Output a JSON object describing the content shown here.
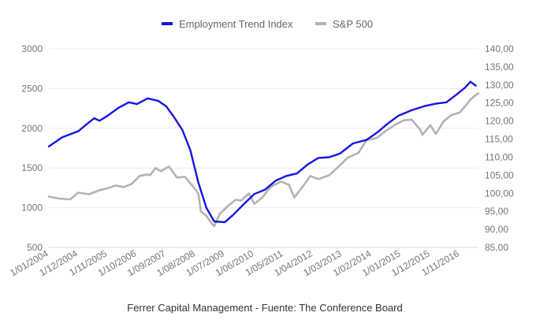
{
  "chart_data": {
    "type": "line",
    "title": "",
    "source": "Ferrer Capital Management - Fuente: The Conference Board",
    "legend": {
      "placement": "top-center"
    },
    "grid": {
      "horizontal": true,
      "vertical": false
    },
    "x_axis": {
      "range": [
        "2004-01-01",
        "2017-06-01"
      ],
      "tick_labels": [
        "1/01/2004",
        "1/12/2004",
        "1/11/2005",
        "1/10/2006",
        "1/09/2007",
        "1/08/2008",
        "1/07/2009",
        "1/06/2010",
        "1/05/2011",
        "1/04/2012",
        "1/03/2013",
        "1/02/2014",
        "1/01/2015",
        "1/12/2015",
        "1/11/2016"
      ],
      "tick_dates": [
        "2004-01-01",
        "2004-12-01",
        "2005-11-01",
        "2006-10-01",
        "2007-09-01",
        "2008-08-01",
        "2009-07-01",
        "2010-06-01",
        "2011-05-01",
        "2012-04-01",
        "2013-03-01",
        "2014-02-01",
        "2015-01-01",
        "2015-12-01",
        "2016-11-01"
      ]
    },
    "y_axis_left": {
      "range": [
        500,
        3000
      ],
      "tick_labels": [
        "3000",
        "2500",
        "2000",
        "1500",
        "1000",
        "500"
      ],
      "tick_values": [
        3000,
        2500,
        2000,
        1500,
        1000,
        500
      ]
    },
    "y_axis_right": {
      "range": [
        85,
        140
      ],
      "tick_labels": [
        "140,00",
        "135,00",
        "130,00",
        "125,00",
        "120,00",
        "115,00",
        "110,00",
        "105,00",
        "100,00",
        "95,00",
        "90,00",
        "85,00"
      ],
      "tick_values": [
        140,
        135,
        130,
        125,
        120,
        115,
        110,
        105,
        100,
        95,
        90,
        85
      ]
    },
    "series": [
      {
        "name": "Employment Trend Index",
        "axis": "right",
        "color": "#1414e6",
        "points": [
          [
            "2004-01-01",
            113.0
          ],
          [
            "2004-06-01",
            115.5
          ],
          [
            "2004-12-01",
            117.2
          ],
          [
            "2005-03-01",
            119.0
          ],
          [
            "2005-06-01",
            120.8
          ],
          [
            "2005-08-01",
            120.1
          ],
          [
            "2005-11-01",
            121.5
          ],
          [
            "2006-03-01",
            123.6
          ],
          [
            "2006-07-01",
            125.2
          ],
          [
            "2006-10-01",
            124.7
          ],
          [
            "2007-02-01",
            126.3
          ],
          [
            "2007-06-01",
            125.6
          ],
          [
            "2007-09-01",
            124.1
          ],
          [
            "2007-12-01",
            121.0
          ],
          [
            "2008-03-01",
            117.6
          ],
          [
            "2008-06-01",
            112.0
          ],
          [
            "2008-09-01",
            103.0
          ],
          [
            "2008-12-01",
            96.0
          ],
          [
            "2009-03-01",
            92.2
          ],
          [
            "2009-07-01",
            92.0
          ],
          [
            "2009-10-01",
            94.0
          ],
          [
            "2010-02-01",
            97.0
          ],
          [
            "2010-06-01",
            99.8
          ],
          [
            "2010-10-01",
            101.0
          ],
          [
            "2011-02-01",
            103.5
          ],
          [
            "2011-06-01",
            104.8
          ],
          [
            "2011-10-01",
            105.5
          ],
          [
            "2012-02-01",
            108.0
          ],
          [
            "2012-06-01",
            109.8
          ],
          [
            "2012-10-01",
            110.0
          ],
          [
            "2013-02-01",
            111.0
          ],
          [
            "2013-07-01",
            113.8
          ],
          [
            "2013-12-01",
            114.8
          ],
          [
            "2014-04-01",
            116.8
          ],
          [
            "2014-08-01",
            119.3
          ],
          [
            "2014-12-01",
            121.5
          ],
          [
            "2015-05-01",
            123.0
          ],
          [
            "2015-10-01",
            124.2
          ],
          [
            "2016-02-01",
            124.8
          ],
          [
            "2016-06-01",
            125.2
          ],
          [
            "2016-10-01",
            127.5
          ],
          [
            "2017-01-01",
            129.3
          ],
          [
            "2017-03-01",
            130.9
          ],
          [
            "2017-05-01",
            129.8
          ]
        ]
      },
      {
        "name": "S&P 500",
        "axis": "left",
        "color": "#b3b3b3",
        "points": [
          [
            "2004-01-01",
            1140
          ],
          [
            "2004-05-01",
            1115
          ],
          [
            "2004-09-01",
            1105
          ],
          [
            "2004-12-01",
            1190
          ],
          [
            "2005-04-01",
            1170
          ],
          [
            "2005-08-01",
            1220
          ],
          [
            "2005-11-01",
            1245
          ],
          [
            "2006-02-01",
            1280
          ],
          [
            "2006-05-01",
            1260
          ],
          [
            "2006-08-01",
            1300
          ],
          [
            "2006-11-01",
            1400
          ],
          [
            "2007-02-01",
            1420
          ],
          [
            "2007-03-01",
            1410
          ],
          [
            "2007-05-01",
            1500
          ],
          [
            "2007-07-01",
            1460
          ],
          [
            "2007-10-01",
            1520
          ],
          [
            "2008-01-01",
            1380
          ],
          [
            "2008-04-01",
            1390
          ],
          [
            "2008-07-01",
            1270
          ],
          [
            "2008-09-01",
            1180
          ],
          [
            "2008-10-01",
            950
          ],
          [
            "2008-12-01",
            900
          ],
          [
            "2009-02-01",
            800
          ],
          [
            "2009-03-01",
            770
          ],
          [
            "2009-05-01",
            920
          ],
          [
            "2009-08-01",
            1020
          ],
          [
            "2009-11-01",
            1100
          ],
          [
            "2010-01-01",
            1090
          ],
          [
            "2010-04-01",
            1180
          ],
          [
            "2010-06-01",
            1050
          ],
          [
            "2010-09-01",
            1130
          ],
          [
            "2010-12-01",
            1260
          ],
          [
            "2011-04-01",
            1330
          ],
          [
            "2011-07-01",
            1290
          ],
          [
            "2011-09-01",
            1130
          ],
          [
            "2011-12-01",
            1260
          ],
          [
            "2012-03-01",
            1400
          ],
          [
            "2012-06-01",
            1360
          ],
          [
            "2012-10-01",
            1410
          ],
          [
            "2013-01-01",
            1500
          ],
          [
            "2013-05-01",
            1630
          ],
          [
            "2013-09-01",
            1690
          ],
          [
            "2013-12-01",
            1850
          ],
          [
            "2014-04-01",
            1880
          ],
          [
            "2014-07-01",
            1960
          ],
          [
            "2014-11-01",
            2050
          ],
          [
            "2015-02-01",
            2100
          ],
          [
            "2015-05-01",
            2110
          ],
          [
            "2015-08-01",
            1990
          ],
          [
            "2015-09-01",
            1920
          ],
          [
            "2015-12-01",
            2040
          ],
          [
            "2016-02-01",
            1930
          ],
          [
            "2016-05-01",
            2090
          ],
          [
            "2016-08-01",
            2170
          ],
          [
            "2016-11-01",
            2200
          ],
          [
            "2017-01-01",
            2280
          ],
          [
            "2017-03-01",
            2360
          ],
          [
            "2017-05-01",
            2420
          ],
          [
            "2017-06-01",
            2440
          ]
        ]
      }
    ]
  }
}
